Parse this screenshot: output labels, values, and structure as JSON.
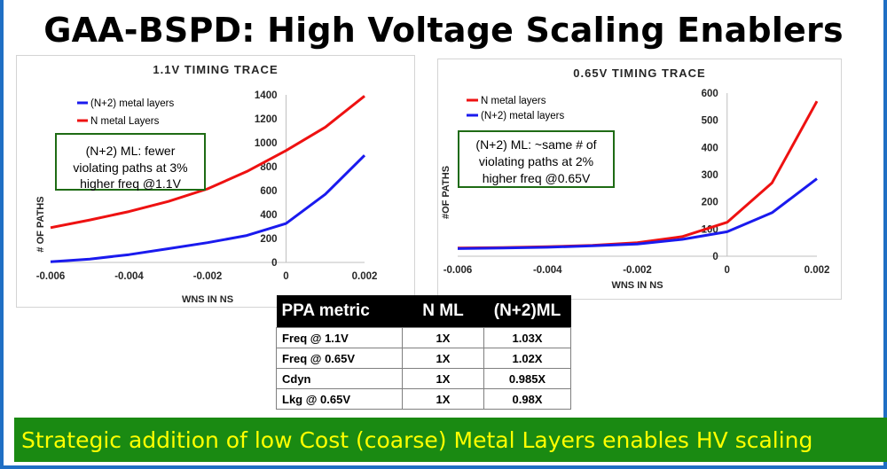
{
  "title": "GAA-BSPD: High Voltage Scaling Enablers",
  "chart_data": [
    {
      "type": "line",
      "title": "1.1V TIMING TRACE",
      "xlabel": "WNS IN NS",
      "ylabel": "# OF PATHS",
      "xlim": [
        -0.006,
        0.002
      ],
      "ylim": [
        0,
        1400
      ],
      "x_ticks": [
        "-0.006",
        "-0.004",
        "-0.002",
        "0",
        "0.002"
      ],
      "y_ticks": [
        "0",
        "200",
        "400",
        "600",
        "800",
        "1000",
        "1200",
        "1400"
      ],
      "legend": "top-left",
      "grid": false,
      "annotation": "(N+2) ML: fewer violating paths at 3% higher freq @1.1V",
      "series": [
        {
          "name": "(N+2) metal layers",
          "color": "#1a1aee",
          "x": [
            -0.006,
            -0.005,
            -0.004,
            -0.003,
            -0.002,
            -0.001,
            0.0,
            0.001,
            0.002
          ],
          "y": [
            5,
            28,
            65,
            115,
            165,
            225,
            325,
            570,
            895
          ]
        },
        {
          "name": "N metal Layers",
          "color": "#ee1111",
          "x": [
            -0.006,
            -0.005,
            -0.004,
            -0.003,
            -0.002,
            -0.001,
            0.0,
            0.001,
            0.002
          ],
          "y": [
            290,
            355,
            425,
            510,
            615,
            760,
            935,
            1130,
            1390
          ]
        }
      ]
    },
    {
      "type": "line",
      "title": "0.65V TIMING TRACE",
      "xlabel": "WNS IN NS",
      "ylabel": "#OF PATHS",
      "xlim": [
        -0.006,
        0.002
      ],
      "ylim": [
        0,
        600
      ],
      "x_ticks": [
        "-0.006",
        "-0.004",
        "-0.002",
        "0",
        "0.002"
      ],
      "y_ticks": [
        "0",
        "100",
        "200",
        "300",
        "400",
        "500",
        "600"
      ],
      "legend": "top-left",
      "grid": false,
      "annotation": "(N+2) ML: ~same # of violating paths at 2% higher freq @0.65V",
      "series": [
        {
          "name": "N metal layers",
          "color": "#ee1111",
          "x": [
            -0.006,
            -0.005,
            -0.004,
            -0.003,
            -0.002,
            -0.001,
            0.0,
            0.001,
            0.002
          ],
          "y": [
            30,
            32,
            35,
            40,
            50,
            72,
            125,
            270,
            570
          ]
        },
        {
          "name": "(N+2) metal layers",
          "color": "#1a1aee",
          "x": [
            -0.006,
            -0.005,
            -0.004,
            -0.003,
            -0.002,
            -0.001,
            0.0,
            0.001,
            0.002
          ],
          "y": [
            28,
            30,
            33,
            38,
            45,
            62,
            90,
            160,
            285
          ]
        }
      ]
    }
  ],
  "ppa_table": {
    "headers": [
      "PPA metric",
      "N ML",
      "(N+2)ML"
    ],
    "rows": [
      [
        "Freq @ 1.1V",
        "1X",
        "1.03X"
      ],
      [
        "Freq @ 0.65V",
        "1X",
        "1.02X"
      ],
      [
        "Cdyn",
        "1X",
        "0.985X"
      ],
      [
        "Lkg @ 0.65V",
        "1X",
        "0.98X"
      ]
    ]
  },
  "banner": "Strategic addition of low Cost (coarse) Metal Layers enables HV scaling",
  "colors": {
    "frame": "#1f6fc4",
    "banner_bg": "#1a8a12",
    "banner_text": "#ffff00",
    "annotation_border": "#1e6b14"
  }
}
